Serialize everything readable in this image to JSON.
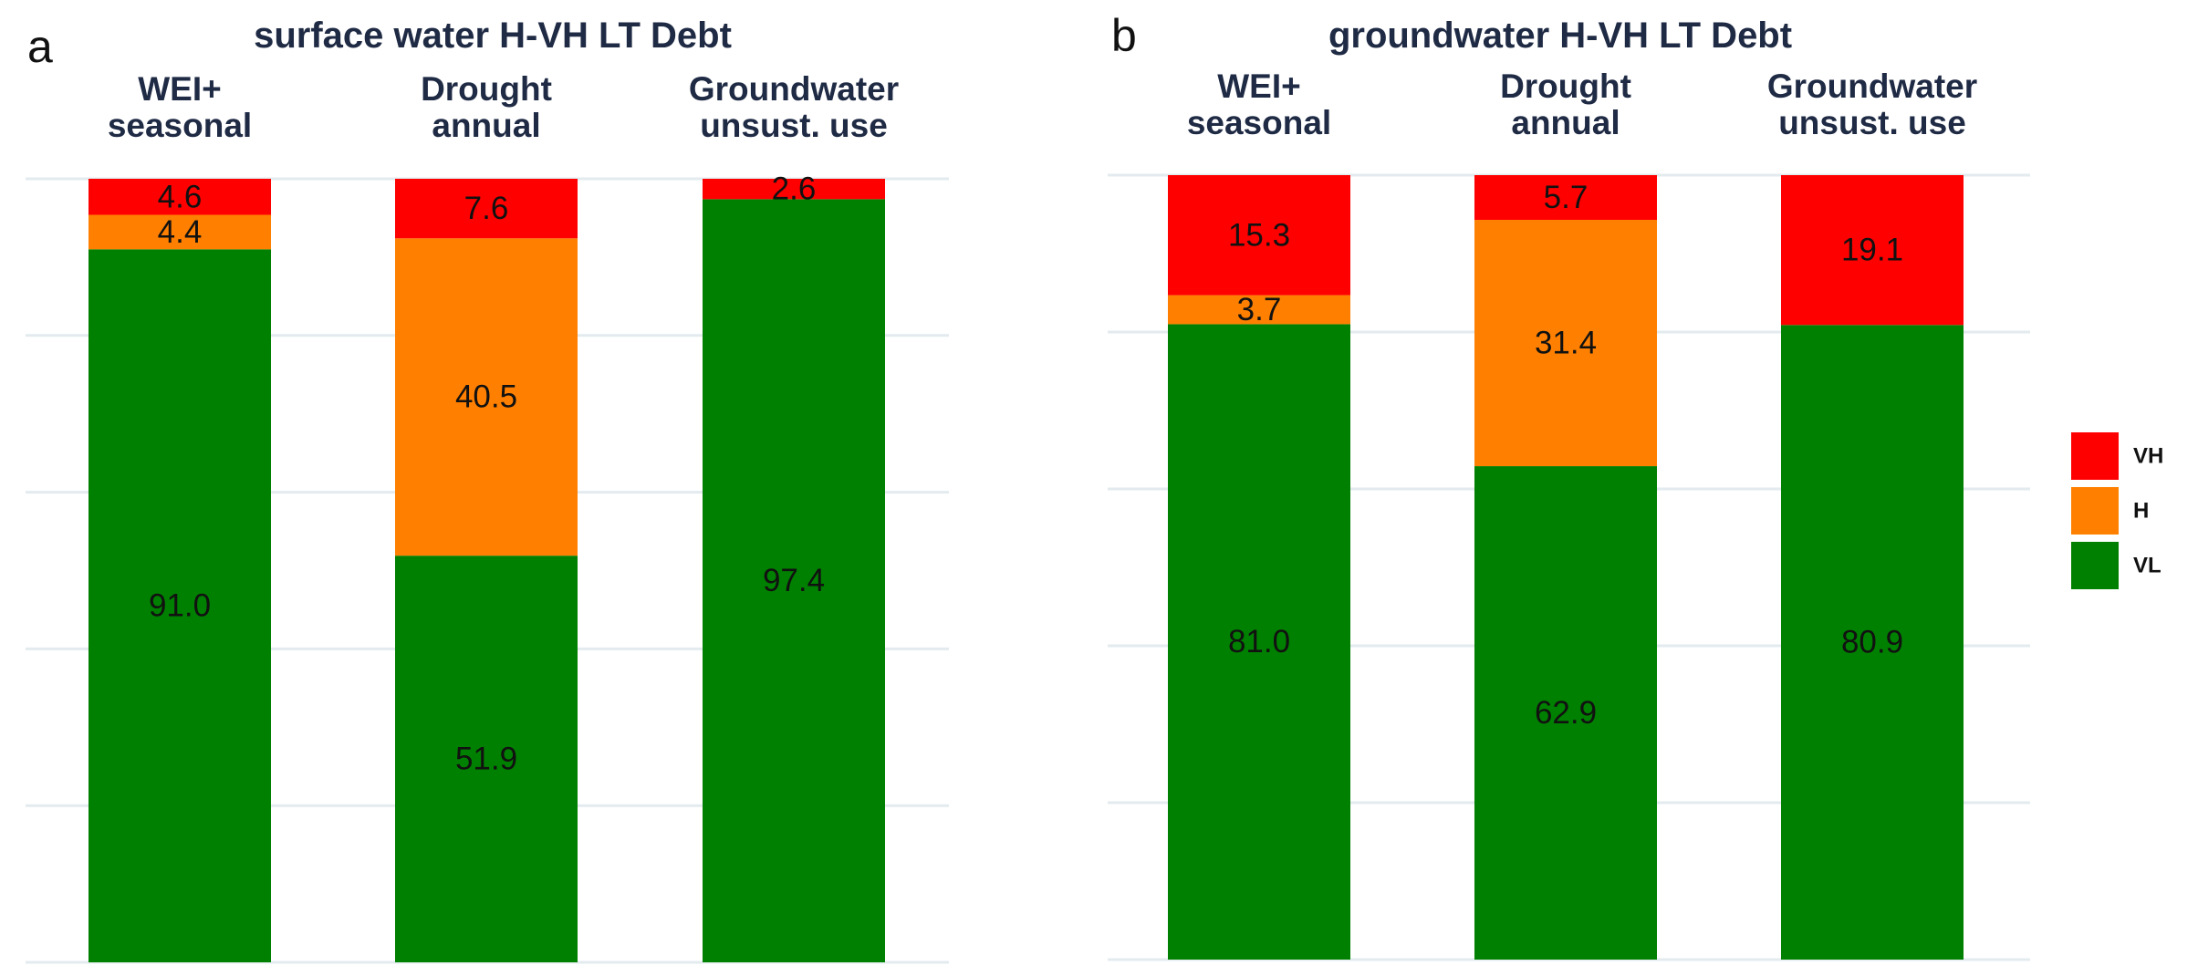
{
  "chart_data": [
    {
      "type": "bar",
      "stacked": true,
      "panel_label": "a",
      "title": "surface water H-VH LT Debt",
      "categories": [
        [
          "WEI+",
          "seasonal"
        ],
        [
          "Drought",
          "annual"
        ],
        [
          "Groundwater",
          "unsust. use"
        ]
      ],
      "series": [
        {
          "name": "VL",
          "values": [
            91.0,
            51.9,
            97.4
          ]
        },
        {
          "name": "H",
          "values": [
            4.4,
            40.5,
            null
          ]
        },
        {
          "name": "VH",
          "values": [
            4.6,
            7.6,
            2.6
          ]
        }
      ],
      "ylim": [
        0,
        100
      ],
      "grid": true,
      "xlabel": "",
      "ylabel": ""
    },
    {
      "type": "bar",
      "stacked": true,
      "panel_label": "b",
      "title": "groundwater H-VH LT Debt",
      "categories": [
        [
          "WEI+",
          "seasonal"
        ],
        [
          "Drought",
          "annual"
        ],
        [
          "Groundwater",
          "unsust. use"
        ]
      ],
      "series": [
        {
          "name": "VL",
          "values": [
            81.0,
            62.9,
            80.9
          ]
        },
        {
          "name": "H",
          "values": [
            3.7,
            31.4,
            null
          ]
        },
        {
          "name": "VH",
          "values": [
            15.3,
            5.7,
            19.1
          ]
        }
      ],
      "ylim": [
        0,
        100
      ],
      "grid": true,
      "xlabel": "",
      "ylabel": ""
    }
  ],
  "legend": {
    "placement": "right",
    "items": [
      {
        "name": "VH",
        "color": "#ff0000"
      },
      {
        "name": "H",
        "color": "#ff8000"
      },
      {
        "name": "VL",
        "color": "#008000"
      }
    ]
  },
  "colors": {
    "VH": "#ff0000",
    "H": "#ff8000",
    "VL": "#008000"
  }
}
